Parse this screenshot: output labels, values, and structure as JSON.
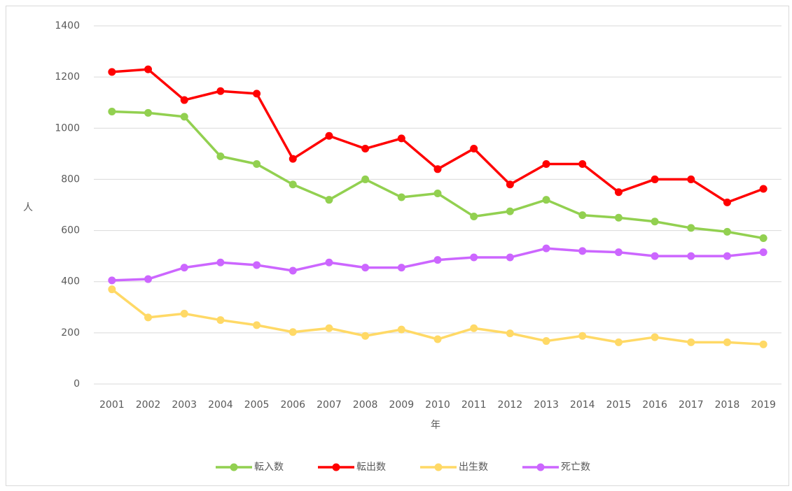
{
  "chart_data": {
    "type": "line",
    "x_label": "年",
    "y_label": "人",
    "categories": [
      "2001",
      "2002",
      "2003",
      "2004",
      "2005",
      "2006",
      "2007",
      "2008",
      "2009",
      "2010",
      "2011",
      "2012",
      "2013",
      "2014",
      "2015",
      "2016",
      "2017",
      "2018",
      "2019"
    ],
    "series": [
      {
        "name": "転入数",
        "color": "#92d050",
        "values": [
          1065,
          1060,
          1045,
          890,
          860,
          780,
          720,
          800,
          730,
          745,
          655,
          675,
          720,
          660,
          650,
          635,
          610,
          595,
          570
        ]
      },
      {
        "name": "転出数",
        "color": "#ff0000",
        "values": [
          1220,
          1230,
          1110,
          1145,
          1135,
          880,
          970,
          920,
          960,
          840,
          920,
          780,
          860,
          860,
          750,
          800,
          800,
          710,
          763
        ]
      },
      {
        "name": "出生数",
        "color": "#ffd966",
        "values": [
          370,
          260,
          275,
          250,
          230,
          203,
          218,
          188,
          213,
          175,
          218,
          198,
          168,
          188,
          163,
          183,
          163,
          163,
          155
        ]
      },
      {
        "name": "死亡数",
        "color": "#cc66ff",
        "values": [
          405,
          410,
          455,
          475,
          465,
          443,
          475,
          455,
          455,
          485,
          495,
          495,
          530,
          520,
          515,
          500,
          500,
          500,
          515
        ]
      }
    ],
    "ylim": [
      0,
      1400
    ],
    "yticks": [
      0,
      200,
      400,
      600,
      800,
      1000,
      1200,
      1400
    ],
    "grid": true,
    "legend": "bottom"
  }
}
